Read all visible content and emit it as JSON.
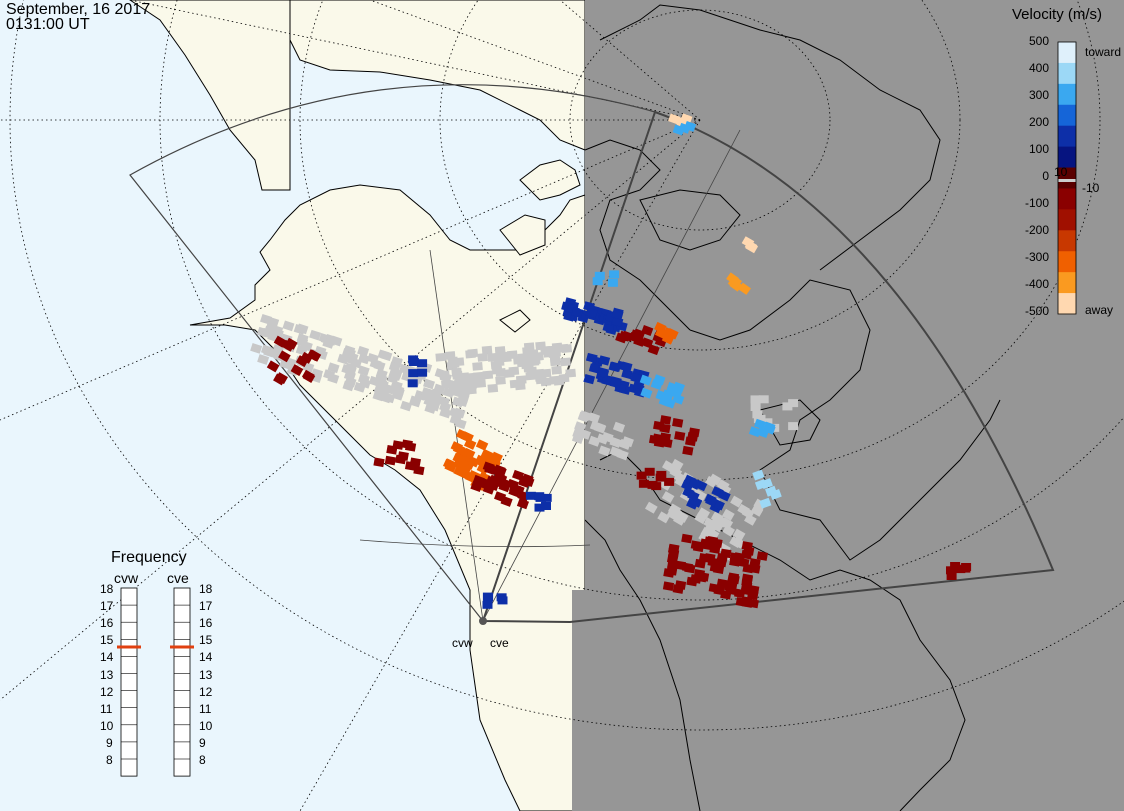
{
  "header": {
    "date": "September, 16 2017",
    "time": "0131:00 UT"
  },
  "colors": {
    "ocean": "#eaf6fd",
    "land": "#faf9ea",
    "night": "#969696",
    "coast": "#000000",
    "groundscatter": "#c8c8c8"
  },
  "velocity_legend": {
    "title": "Velocity (m/s)",
    "ticks": [
      "500",
      "400",
      "300",
      "200",
      "100",
      "10",
      "0",
      "-10",
      "-100",
      "-200",
      "-300",
      "-400",
      "-500"
    ],
    "toward_label": "toward",
    "away_label": "away",
    "color_stops": [
      "#dff0fb",
      "#9cd8f6",
      "#3aa8f0",
      "#1565d8",
      "#0d2fa8",
      "#061480",
      "#5a0000",
      "#8a0000",
      "#a01000",
      "#c83800",
      "#f06000",
      "#fa9a20",
      "#ffd8b0"
    ]
  },
  "frequency_panel": {
    "title": "Frequency",
    "radars": [
      {
        "name": "cvw",
        "frequency_mhz": 15
      },
      {
        "name": "cve",
        "frequency_mhz": 15
      }
    ],
    "scale": [
      "18",
      "17",
      "16",
      "15",
      "14",
      "13",
      "12",
      "11",
      "10",
      "9",
      "8"
    ],
    "marker_color": "#e04010"
  },
  "radar_labels": [
    "cvw",
    "cve"
  ]
}
